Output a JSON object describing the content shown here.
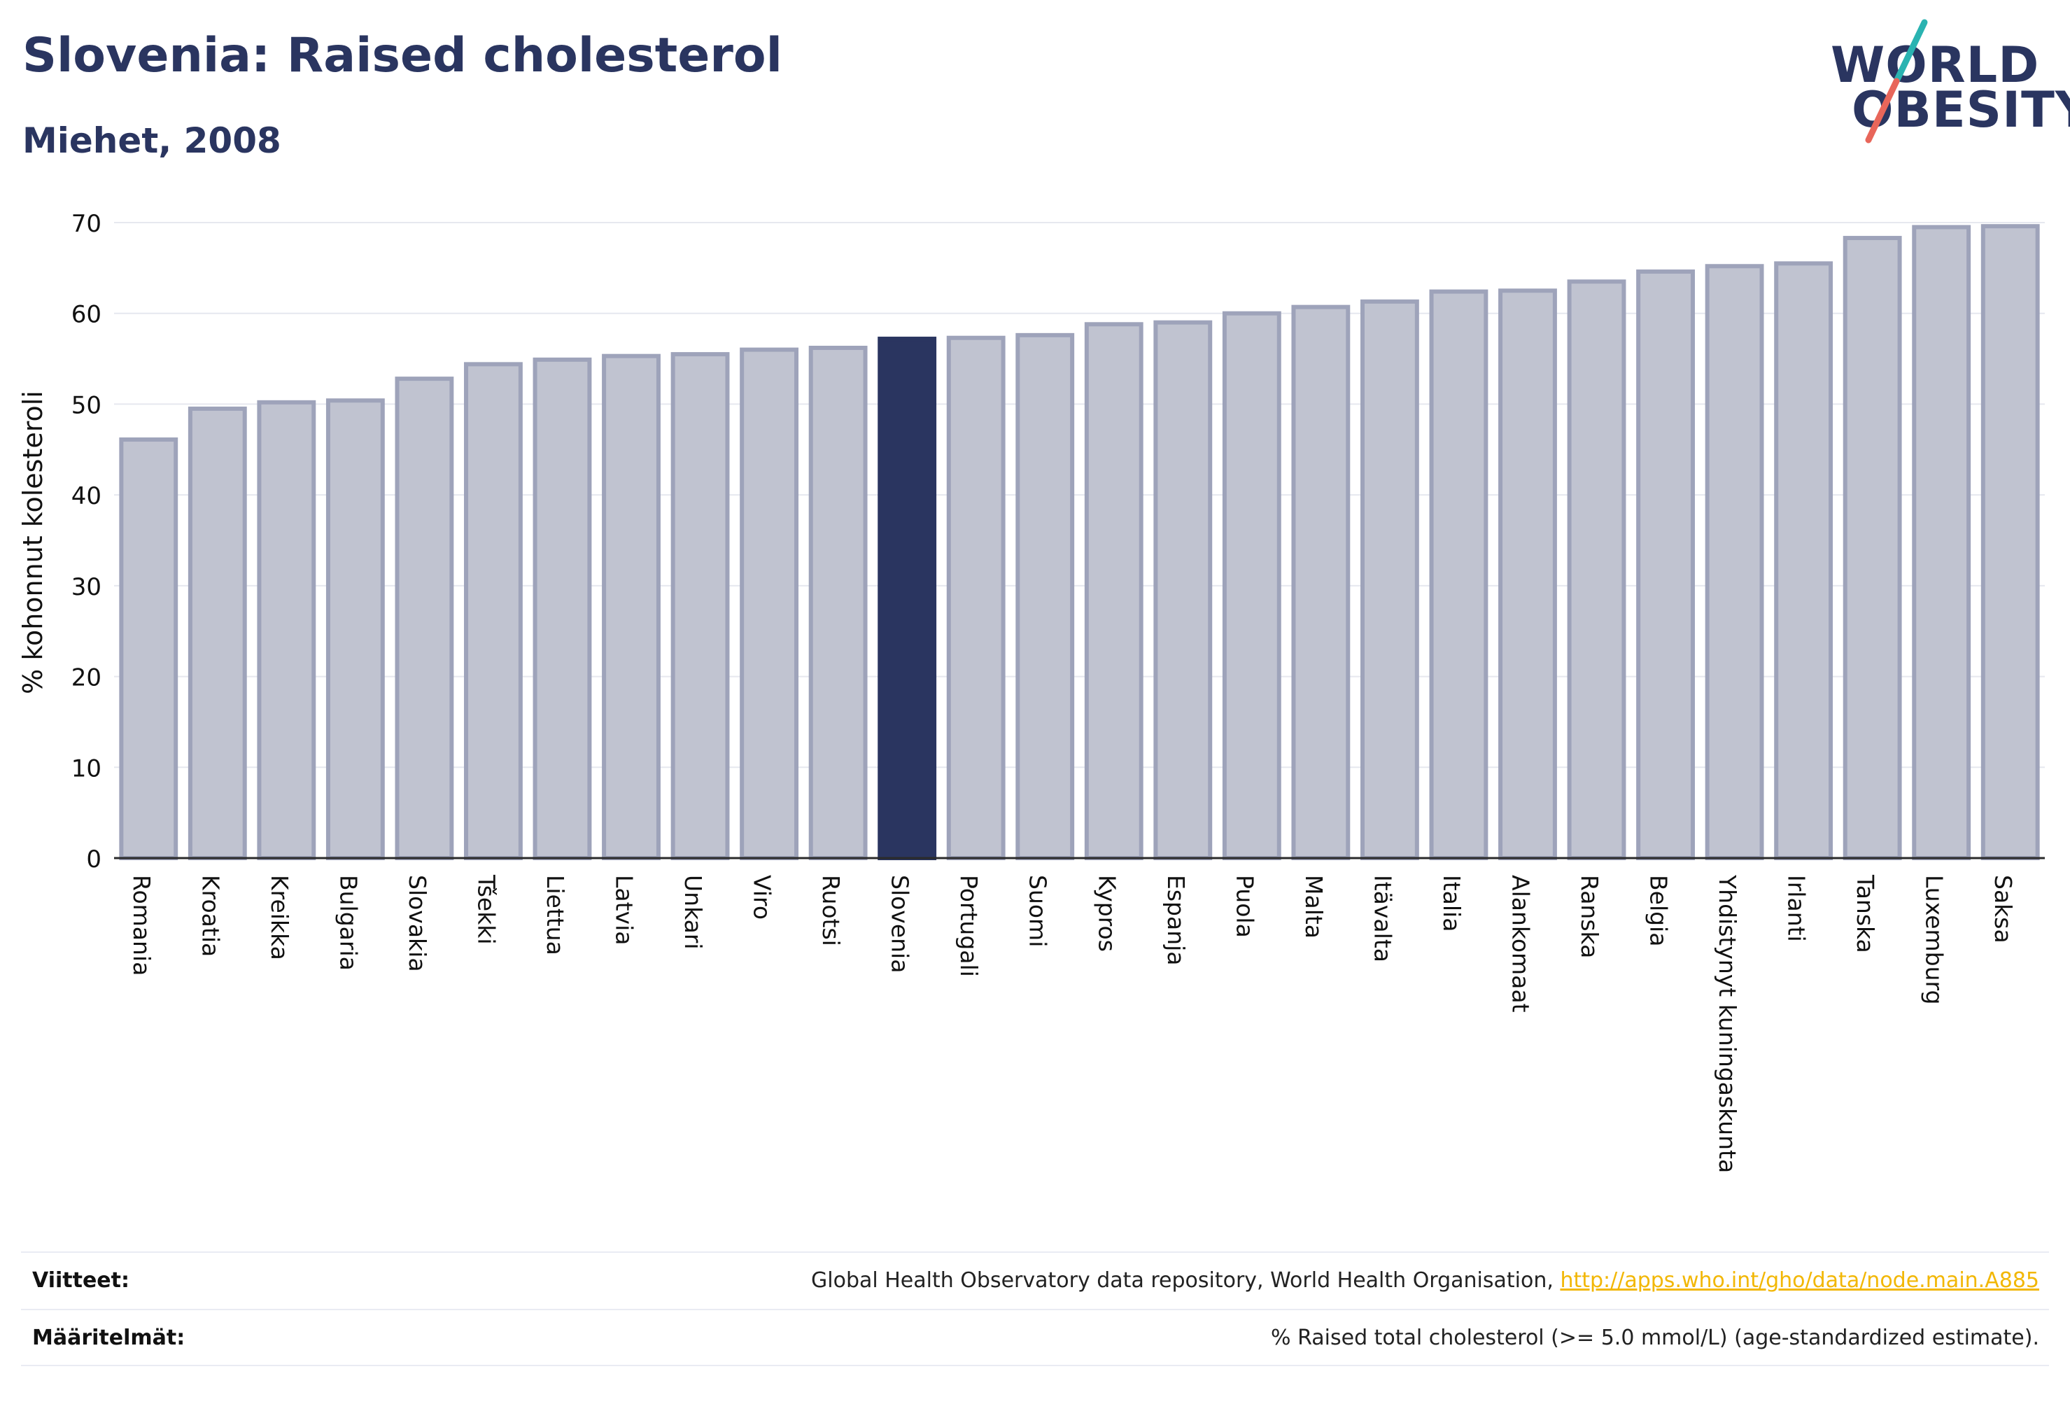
{
  "header": {
    "title": "Slovenia: Raised cholesterol",
    "subtitle": "Miehet, 2008"
  },
  "logo": {
    "line1": "WORLD",
    "line2": "OBESITY",
    "colors": {
      "text": "#2a3560",
      "slash_top": "#2ab3b1",
      "slash_bottom": "#e8665a"
    }
  },
  "chart_data": {
    "type": "bar",
    "title": "",
    "xlabel": "",
    "ylabel": "% kohonnut kolesteroli",
    "ylim": [
      0,
      70
    ],
    "yticks": [
      0,
      10,
      20,
      30,
      40,
      50,
      60,
      70
    ],
    "grid": true,
    "highlight": "Slovenia",
    "colors": {
      "bar": "#c0c3d0",
      "bar_edge": "#9ea3ba",
      "highlight": "#2a3560",
      "grid": "#e6e8ef",
      "axis": "#2a2a2a"
    },
    "categories": [
      "Romania",
      "Kroatia",
      "Kreikka",
      "Bulgaria",
      "Slovakia",
      "Tšekki",
      "Liettua",
      "Latvia",
      "Unkari",
      "Viro",
      "Ruotsi",
      "Slovenia",
      "Portugali",
      "Suomi",
      "Kypros",
      "Espanja",
      "Puola",
      "Malta",
      "Itävalta",
      "Italia",
      "Alankomaat",
      "Ranska",
      "Belgia",
      "Yhdistynyt kuningaskunta",
      "Irlanti",
      "Tanska",
      "Luxemburg",
      "Saksa"
    ],
    "values": [
      46.1,
      49.5,
      50.2,
      50.4,
      52.8,
      54.4,
      54.9,
      55.3,
      55.5,
      56.0,
      56.2,
      57.2,
      57.3,
      57.6,
      58.8,
      59.0,
      60.0,
      60.7,
      61.3,
      62.4,
      62.5,
      63.5,
      64.6,
      65.2,
      65.5,
      68.3,
      69.5,
      69.6
    ]
  },
  "footer": {
    "sources_label": "Viitteet:",
    "sources_text": "Global Health Observatory data repository, World Health Organisation, ",
    "sources_link": "http://apps.who.int/gho/data/node.main.A885",
    "definitions_label": "Määritelmät:",
    "definitions_text": "% Raised total cholesterol (>= 5.0 mmol/L) (age-standardized estimate)."
  }
}
